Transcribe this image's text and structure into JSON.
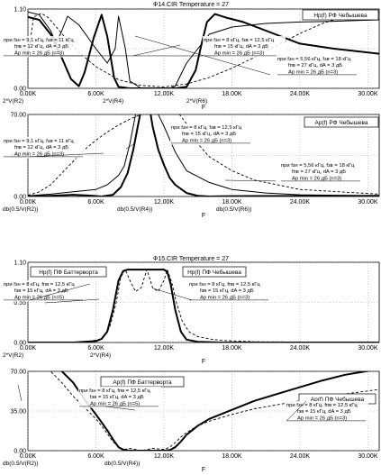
{
  "sections": [
    {
      "title": "Ф14.CIR  Temperature = 27"
    },
    {
      "title": "Ф15.CIR  Temperature = 27"
    }
  ],
  "chart_data": [
    {
      "type": "line",
      "xlabel": "F",
      "xlim": [
        0,
        31000
      ],
      "ylim": [
        0,
        1.1
      ],
      "yticks": [
        "1.10",
        "0.55",
        "0.00"
      ],
      "xticks": [
        "0.00K",
        "6.00K",
        "12.00K",
        "18.00K",
        "24.00K",
        "30.00K"
      ],
      "xtick_values": [
        0,
        6000,
        12000,
        18000,
        24000,
        30000
      ],
      "trace_labels": [
        "2*V(R2)",
        "2*V(R4)",
        "2*V(R6)"
      ],
      "series": [
        {
          "style": "bold",
          "x": [
            0,
            1000,
            2000,
            3000,
            3800,
            4500,
            5000,
            5800,
            6500,
            7000,
            7600,
            8000,
            9000,
            10000,
            11000,
            12000,
            13000,
            14000,
            14800,
            15300,
            15800,
            16500,
            17500,
            19000,
            21000,
            24000,
            27000,
            31000
          ],
          "y": [
            0.99,
            0.95,
            0.75,
            0.42,
            0.13,
            0.03,
            0.22,
            0.7,
            1.02,
            0.72,
            0.15,
            0.02,
            0.0,
            0.0,
            0.0,
            0.0,
            0.0,
            0.02,
            0.25,
            0.6,
            0.92,
            1.03,
            0.98,
            0.92,
            0.8,
            0.62,
            0.55,
            0.48
          ]
        },
        {
          "style": "medium",
          "x": [
            0,
            1000,
            2000,
            2500,
            3000,
            3500,
            4500,
            6000,
            7000,
            7700,
            8000,
            8600,
            9000,
            10000,
            11000,
            12000,
            12500,
            13000,
            14000,
            16000,
            18000,
            21000,
            24000,
            27000,
            31000
          ],
          "y": [
            1.06,
            1.02,
            0.8,
            0.62,
            0.8,
            1.0,
            0.88,
            0.55,
            0.35,
            0.55,
            1.0,
            0.55,
            0.1,
            0.0,
            0.0,
            0.0,
            0.0,
            0.03,
            0.35,
            0.75,
            0.85,
            0.9,
            0.92,
            0.93,
            0.95
          ]
        },
        {
          "style": "dash",
          "x": [
            0,
            500,
            1200,
            1800,
            2500,
            3200,
            4500,
            6000,
            8000,
            10000,
            12000,
            14000,
            16000,
            18000,
            20000,
            22000,
            24000,
            26000,
            28000,
            31000
          ],
          "y": [
            0.42,
            0.99,
            1.04,
            0.98,
            0.85,
            0.72,
            0.5,
            0.3,
            0.12,
            0.04,
            0.02,
            0.06,
            0.15,
            0.28,
            0.43,
            0.6,
            0.76,
            0.9,
            1.0,
            1.06
          ]
        }
      ],
      "legend_title": "Hp(f)  РФ Чебышева",
      "annotations": [
        {
          "lines": [
            "при  fзн = 9,1 кГц,  fзв = 11 кГц",
            "fпв = 12 кГц,  dA = 3 дБ",
            "Ap min = 26 дБ  (n=3)"
          ]
        },
        {
          "lines": [
            "при  fзн = 8 кГц,  fзв = 12,5 кГц",
            "fпв = 15 кГц,  dA = 3 дБ",
            "Ap min = 26 дБ  (n=3)"
          ]
        },
        {
          "lines": [
            "при  fзн = 5,56 кГц,  fзв = 18 кГц",
            "fпв = 27 кГц,  dA = 3 дБ",
            "Ap min = 26 дБ  (n=3)"
          ]
        }
      ]
    },
    {
      "type": "line",
      "xlabel": "F",
      "xlim": [
        0,
        31000
      ],
      "ylim": [
        0,
        70
      ],
      "yticks": [
        "70.00",
        "35.00",
        "0.00"
      ],
      "xticks": [
        "0.00K",
        "6.00K",
        "12.00K",
        "18.00K",
        "24.00K",
        "30.00K"
      ],
      "xtick_values": [
        0,
        6000,
        12000,
        18000,
        24000,
        30000
      ],
      "trace_labels": [
        "db(0.5/V(R2))",
        "db(0.5/V(R4))",
        "db(0.5/V(R6))"
      ],
      "series": [
        {
          "style": "bold",
          "x": [
            0,
            2000,
            4000,
            5500,
            6500,
            7500,
            8200,
            8800,
            9300,
            9800,
            10000,
            10500,
            10800,
            11000,
            11500,
            12000,
            12500,
            13000,
            14000,
            15000,
            16000,
            17000,
            18000,
            20000,
            31000
          ],
          "y": [
            0,
            0.5,
            1.5,
            0.8,
            0,
            1.5,
            8,
            20,
            40,
            65,
            75,
            75,
            72,
            60,
            40,
            27,
            16,
            10,
            3,
            0.5,
            0,
            0.2,
            0.3,
            0.4,
            0.5
          ]
        },
        {
          "style": "medium",
          "x": [
            0,
            2000,
            4000,
            6000,
            7000,
            8000,
            8500,
            9000,
            9300,
            9600,
            10000,
            11000,
            11500,
            12000,
            13000,
            14000,
            16000,
            18000,
            21000,
            24000,
            31000
          ],
          "y": [
            0.5,
            2,
            4,
            6,
            10,
            18,
            26,
            45,
            60,
            75,
            75,
            75,
            70,
            60,
            38,
            22,
            12,
            6,
            3,
            1.5,
            0.5
          ]
        },
        {
          "style": "dash",
          "x": [
            0,
            1000,
            2000,
            3000,
            4000,
            5000,
            6000,
            7000,
            8000,
            9000,
            10000,
            11000,
            12000,
            13000,
            14000,
            15000,
            16000,
            18000,
            20000,
            24000,
            31000
          ],
          "y": [
            1,
            4,
            10,
            20,
            30,
            40,
            48,
            55,
            61,
            66,
            70,
            73,
            75,
            75,
            62,
            45,
            34,
            22,
            14,
            6,
            2
          ]
        }
      ],
      "legend_title": "Ap(f)  РФ Чебышева",
      "annotations": [
        {
          "lines": [
            "при  fзн = 9,1 кГц,  fзв = 11 кГц",
            "fпв = 12 кГц,  dA = 3 дБ",
            "Ap min = 26 дБ  (n=3)"
          ]
        },
        {
          "lines": [
            "при  fзн = 8 кГц,  fзв = 12,5 кГц",
            "fпв = 15 кГц,  dA = 3 дБ",
            "Ap min = 26 дБ  (n=3)"
          ]
        },
        {
          "lines": [
            "при  fзн = 5,56 кГц,  fзв = 18 кГц",
            "fпв = 27 кГц,  dA = 3 дБ",
            "Ap min = 26 дБ  (n=3)"
          ]
        }
      ]
    },
    {
      "type": "line",
      "xlabel": "F",
      "xlim": [
        0,
        31000
      ],
      "ylim": [
        0,
        1.1
      ],
      "yticks": [
        "1.10",
        "0.55",
        "0.00"
      ],
      "xticks": [
        "0.00K",
        "6.00K",
        "12.00K",
        "18.00K",
        "24.00K",
        "30.00K"
      ],
      "xtick_values": [
        0,
        6000,
        12000,
        18000,
        24000,
        30000
      ],
      "trace_labels": [
        "2*V(R2)",
        "2*V(R4)"
      ],
      "series": [
        {
          "style": "bold",
          "x": [
            0,
            4000,
            6000,
            6500,
            7000,
            7500,
            8000,
            8400,
            8800,
            9500,
            10500,
            11500,
            12000,
            12300,
            12600,
            13000,
            13500,
            14000,
            15000,
            17000,
            20000,
            31000
          ],
          "y": [
            0,
            0,
            0.02,
            0.05,
            0.15,
            0.45,
            0.85,
            0.98,
            1.0,
            1.0,
            1.0,
            1.0,
            1.0,
            0.97,
            0.8,
            0.45,
            0.15,
            0.04,
            0.01,
            0,
            0,
            0
          ]
        },
        {
          "style": "dash",
          "x": [
            0,
            5000,
            6500,
            7200,
            7800,
            8200,
            8600,
            9000,
            9500,
            10000,
            10500,
            11000,
            11500,
            12000,
            12300,
            12700,
            13100,
            13600,
            14200,
            15000,
            16000,
            17000,
            20000,
            31000
          ],
          "y": [
            0,
            0,
            0.05,
            0.2,
            0.55,
            0.9,
            1.0,
            0.85,
            0.7,
            0.75,
            1.0,
            0.75,
            0.7,
            0.85,
            1.0,
            0.82,
            0.55,
            0.3,
            0.15,
            0.08,
            0.05,
            0.03,
            0.01,
            0
          ]
        }
      ],
      "legend_titles": [
        "Hp(f)  ПФ Баттерворта",
        "Hp(f)  ПФ Чебышева"
      ],
      "annotations": [
        {
          "lines": [
            "при  fзн = 8 кГц,  fпв = 12,5 кГц",
            "fзв = 15 кГц,  dA = 3 дБ",
            "Ap min = 26 дБ  (n=5)"
          ]
        },
        {
          "lines": [
            "при  fзн = 8 кГц,  fпв = 12,5 кГц",
            "fзв = 15 кГц,  dA = 3 дБ",
            "Ap min = 26 дБ  (n=3)"
          ]
        }
      ]
    },
    {
      "type": "line",
      "xlabel": "F",
      "xlim": [
        0,
        31000
      ],
      "ylim": [
        0,
        70
      ],
      "yticks": [
        "70.00",
        "35.00",
        "0.00"
      ],
      "xticks": [
        "0.00K",
        "6.00K",
        "12.00K",
        "18.00K",
        "24.00K",
        "30.00K"
      ],
      "xtick_values": [
        0,
        6000,
        12000,
        18000,
        24000,
        30000
      ],
      "trace_labels": [
        "db(0.5/V(R2))",
        "db(0.5/V(R4))"
      ],
      "series": [
        {
          "style": "bold",
          "x": [
            0,
            2000,
            3000,
            4000,
            5000,
            6000,
            6500,
            7000,
            7500,
            8000,
            8500,
            9000,
            12000,
            12500,
            13000,
            13500,
            14000,
            15000,
            16000,
            18000,
            20000,
            22000,
            24000,
            26000,
            28000,
            31000
          ],
          "y": [
            95,
            80,
            70,
            60,
            45,
            32,
            25,
            18,
            10,
            3,
            0.5,
            0,
            0,
            0.5,
            3,
            8,
            14,
            22,
            28,
            36,
            44,
            50,
            56,
            62,
            67,
            72
          ]
        },
        {
          "style": "dash",
          "x": [
            0,
            2000,
            3000,
            4000,
            5000,
            6000,
            6500,
            7000,
            7500,
            8000,
            8500,
            9000,
            10000,
            11000,
            12000,
            12500,
            13000,
            13500,
            14000,
            15000,
            16000,
            18000,
            20000,
            24000,
            28000,
            31000
          ],
          "y": [
            90,
            70,
            60,
            48,
            38,
            28,
            22,
            15,
            8,
            3,
            1,
            2,
            0,
            2,
            1,
            3,
            7,
            12,
            16,
            22,
            26,
            32,
            37,
            44,
            50,
            54
          ]
        }
      ],
      "legend_titles": [
        "Ap(f)  ПФ Баттерворта",
        "Ap(f)  ПФ Чебышева"
      ],
      "annotations": [
        {
          "lines": [
            "при  fзн = 8 кГц,  fпв = 12,5 кГц",
            "fзв = 15 кГц,  dA = 3 дБ",
            "Ap min = 26 дБ  (n=5)"
          ]
        },
        {
          "lines": [
            "при  fзн = 8 кГц,  fпв = 12,5 кГц",
            "fзв = 15 кГц,  dA = 3 дБ",
            "Ap min = 26 дБ  (n=3)"
          ]
        }
      ]
    }
  ]
}
